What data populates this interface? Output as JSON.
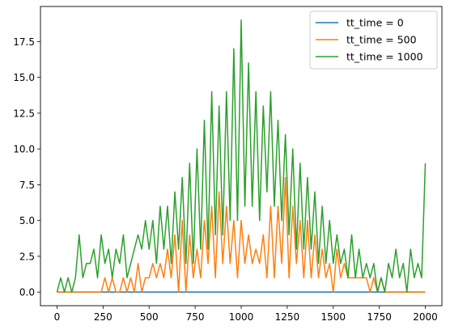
{
  "chart_data": {
    "type": "line",
    "title": "",
    "xlabel": "",
    "ylabel": "",
    "xlim": [
      -90,
      2090
    ],
    "ylim": [
      -0.95,
      19.95
    ],
    "x_ticks": [
      0,
      250,
      500,
      750,
      1000,
      1250,
      1500,
      1750,
      2000
    ],
    "x_tick_labels": [
      "0",
      "250",
      "500",
      "750",
      "1000",
      "1250",
      "1500",
      "1750",
      "2000"
    ],
    "y_ticks": [
      0.0,
      2.5,
      5.0,
      7.5,
      10.0,
      12.5,
      15.0,
      17.5
    ],
    "y_tick_labels": [
      "0.0",
      "2.5",
      "5.0",
      "7.5",
      "10.0",
      "12.5",
      "15.0",
      "17.5"
    ],
    "grid": false,
    "legend_position": "top-right",
    "x_step": 20,
    "series": [
      {
        "name": "tt_time = 0",
        "color": "#1f77b4",
        "x_start": 0,
        "values": [
          0,
          0,
          0,
          0,
          0,
          0,
          0,
          0,
          0,
          0,
          0,
          0,
          0,
          0,
          0,
          0,
          0,
          0,
          0,
          0,
          0,
          0,
          0,
          0,
          0,
          0,
          0,
          0,
          0,
          0,
          0,
          0,
          0,
          0,
          0,
          0,
          0,
          0,
          0,
          0,
          0,
          0,
          0,
          0,
          0,
          0,
          0,
          0,
          0,
          0,
          0,
          0,
          0,
          0,
          0,
          0,
          0,
          0,
          0,
          0,
          0,
          0,
          0,
          0,
          0,
          0,
          0,
          0,
          0,
          0,
          0,
          0,
          0,
          0,
          0,
          0,
          0,
          0,
          0,
          0,
          0,
          0,
          0,
          0,
          0,
          0,
          0,
          0,
          0,
          0,
          0,
          0,
          0,
          0,
          0,
          0,
          0,
          0,
          0,
          0,
          0
        ]
      },
      {
        "name": "tt_time = 500",
        "color": "#ff7f0e",
        "x_start": 0,
        "values": [
          0,
          0,
          0,
          0,
          0,
          0,
          0,
          0,
          0,
          0,
          0,
          0,
          0,
          1,
          0,
          1,
          0,
          0,
          1,
          0,
          1,
          0,
          2,
          0,
          1,
          1,
          2,
          1,
          2,
          1,
          3,
          1,
          4,
          0,
          5,
          0,
          4,
          1,
          3,
          1,
          5,
          2,
          6,
          1,
          7,
          2,
          6,
          2,
          5,
          1,
          5,
          2,
          4,
          2,
          3,
          2,
          4,
          1,
          6,
          1,
          6,
          2,
          8,
          1,
          6,
          2,
          5,
          1,
          5,
          1,
          4,
          1,
          3,
          1,
          2,
          0,
          3,
          1,
          2,
          1,
          1,
          1,
          1,
          1,
          1,
          0,
          1,
          0,
          1,
          0,
          0,
          0,
          0,
          0,
          0,
          0,
          0,
          0,
          0,
          0,
          0
        ]
      },
      {
        "name": "tt_time = 1000",
        "color": "#2ca02c",
        "x_start": 0,
        "values": [
          0,
          1,
          0,
          1,
          0,
          1,
          4,
          1,
          2,
          2,
          3,
          1,
          4,
          2,
          3,
          1,
          3,
          2,
          4,
          1,
          2,
          3,
          4,
          3,
          5,
          3,
          5,
          2,
          6,
          3,
          6,
          2,
          7,
          3,
          8,
          2,
          9,
          2,
          10,
          3,
          12,
          3,
          14,
          4,
          13,
          4,
          14,
          5,
          17,
          5,
          19,
          6,
          16,
          6,
          14,
          5,
          13,
          7,
          14,
          6,
          12,
          5,
          11,
          4,
          10,
          3,
          9,
          3,
          8,
          3,
          7,
          2,
          6,
          2,
          5,
          2,
          4,
          2,
          3,
          1,
          4,
          1,
          3,
          1,
          2,
          1,
          2,
          0,
          1,
          0,
          2,
          1,
          3,
          1,
          2,
          0,
          3,
          1,
          2,
          1,
          9
        ]
      }
    ]
  }
}
